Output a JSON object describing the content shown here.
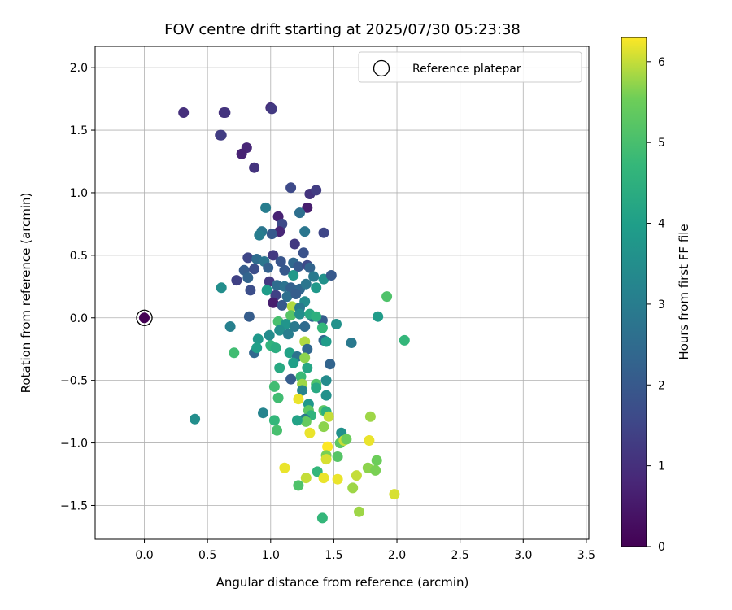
{
  "chart_data": {
    "type": "scatter",
    "title": "FOV centre drift starting at 2025/07/30 05:23:38",
    "xlabel": "Angular distance from reference (arcmin)",
    "ylabel": "Rotation from reference (arcmin)",
    "xlim": [
      -0.39,
      3.52
    ],
    "ylim": [
      -1.77,
      2.17
    ],
    "xticks": [
      "0.0",
      "0.5",
      "1.0",
      "1.5",
      "2.0",
      "2.5",
      "3.0",
      "3.5"
    ],
    "yticks": [
      "−1.5",
      "−1.0",
      "−0.5",
      "0.0",
      "0.5",
      "1.0",
      "1.5",
      "2.0"
    ],
    "grid": true,
    "legend": {
      "placement": "top-right",
      "entries": [
        "Reference platepar"
      ]
    },
    "reference_point": {
      "x": 0.0,
      "y": 0.0
    },
    "colorbar": {
      "label": "Hours from first FF file",
      "range": [
        0,
        6.3
      ],
      "ticks": [
        "0",
        "1",
        "2",
        "3",
        "4",
        "5",
        "6"
      ],
      "colormap": "viridis"
    },
    "points": [
      [
        0.0,
        0.0,
        0.0
      ],
      [
        0.31,
        1.64,
        1.0
      ],
      [
        0.63,
        1.64,
        1.0
      ],
      [
        0.64,
        1.64,
        1.1
      ],
      [
        1.0,
        1.68,
        1.0
      ],
      [
        1.01,
        1.67,
        1.2
      ],
      [
        0.6,
        1.46,
        1.2
      ],
      [
        0.61,
        1.46,
        1.3
      ],
      [
        0.81,
        1.36,
        0.8
      ],
      [
        0.77,
        1.31,
        0.7
      ],
      [
        0.87,
        1.2,
        1.1
      ],
      [
        1.16,
        1.04,
        1.6
      ],
      [
        1.31,
        0.99,
        1.1
      ],
      [
        1.36,
        1.02,
        1.3
      ],
      [
        1.29,
        0.88,
        0.6
      ],
      [
        1.06,
        0.81,
        0.7
      ],
      [
        1.09,
        0.75,
        1.6
      ],
      [
        1.07,
        0.69,
        0.8
      ],
      [
        1.01,
        0.67,
        2.0
      ],
      [
        0.96,
        0.88,
        3.0
      ],
      [
        0.93,
        0.69,
        2.8
      ],
      [
        0.91,
        0.66,
        3.0
      ],
      [
        1.23,
        0.84,
        2.6
      ],
      [
        1.27,
        0.69,
        2.8
      ],
      [
        1.42,
        0.68,
        1.5
      ],
      [
        1.19,
        0.59,
        1.2
      ],
      [
        1.26,
        0.52,
        1.8
      ],
      [
        0.82,
        0.48,
        1.5
      ],
      [
        0.89,
        0.47,
        2.5
      ],
      [
        0.95,
        0.45,
        2.8
      ],
      [
        1.02,
        0.5,
        1.2
      ],
      [
        1.08,
        0.45,
        1.9
      ],
      [
        1.18,
        0.44,
        2.4
      ],
      [
        1.22,
        0.41,
        2.0
      ],
      [
        1.29,
        0.42,
        1.6
      ],
      [
        0.79,
        0.38,
        2.1
      ],
      [
        0.87,
        0.39,
        1.7
      ],
      [
        0.98,
        0.4,
        2.2
      ],
      [
        1.11,
        0.38,
        2.0
      ],
      [
        1.18,
        0.34,
        3.8
      ],
      [
        1.31,
        0.4,
        2.3
      ],
      [
        1.34,
        0.33,
        2.9
      ],
      [
        1.42,
        0.31,
        3.6
      ],
      [
        1.48,
        0.34,
        2.0
      ],
      [
        0.73,
        0.3,
        1.4
      ],
      [
        0.82,
        0.32,
        2.3
      ],
      [
        0.99,
        0.29,
        1.2
      ],
      [
        1.05,
        0.26,
        2.5
      ],
      [
        1.11,
        0.25,
        2.7
      ],
      [
        1.16,
        0.24,
        2.2
      ],
      [
        1.23,
        0.23,
        2.4
      ],
      [
        1.28,
        0.27,
        2.8
      ],
      [
        1.36,
        0.24,
        3.8
      ],
      [
        0.84,
        0.22,
        1.7
      ],
      [
        0.97,
        0.22,
        3.9
      ],
      [
        1.04,
        0.18,
        1.4
      ],
      [
        1.13,
        0.17,
        2.6
      ],
      [
        1.2,
        0.19,
        2.1
      ],
      [
        1.27,
        0.13,
        3.4
      ],
      [
        1.02,
        0.12,
        0.6
      ],
      [
        1.09,
        0.1,
        2.0
      ],
      [
        1.17,
        0.09,
        5.9
      ],
      [
        1.23,
        0.08,
        2.9
      ],
      [
        1.33,
        0.01,
        2.4
      ],
      [
        1.41,
        -0.02,
        2.1
      ],
      [
        1.16,
        0.02,
        5.2
      ],
      [
        1.23,
        0.03,
        3.5
      ],
      [
        1.31,
        0.03,
        4.3
      ],
      [
        1.36,
        0.01,
        4.5
      ],
      [
        0.61,
        0.24,
        3.5
      ],
      [
        0.83,
        0.01,
        2.1
      ],
      [
        1.06,
        -0.03,
        5.0
      ],
      [
        1.12,
        -0.05,
        3.7
      ],
      [
        1.19,
        -0.07,
        2.9
      ],
      [
        1.27,
        -0.07,
        2.5
      ],
      [
        1.41,
        -0.08,
        4.7
      ],
      [
        1.52,
        -0.05,
        3.6
      ],
      [
        1.85,
        0.01,
        3.9
      ],
      [
        1.92,
        0.17,
        5.1
      ],
      [
        0.68,
        -0.07,
        3.1
      ],
      [
        0.9,
        -0.17,
        3.8
      ],
      [
        0.99,
        -0.14,
        3.4
      ],
      [
        1.07,
        -0.1,
        3.5
      ],
      [
        1.14,
        -0.13,
        3.0
      ],
      [
        1.27,
        -0.19,
        5.9
      ],
      [
        1.42,
        -0.18,
        2.4
      ],
      [
        1.44,
        -0.19,
        3.9
      ],
      [
        1.64,
        -0.2,
        2.9
      ],
      [
        2.06,
        -0.18,
        4.7
      ],
      [
        0.87,
        -0.28,
        2.4
      ],
      [
        0.89,
        -0.24,
        4.0
      ],
      [
        0.71,
        -0.28,
        4.9
      ],
      [
        1.0,
        -0.22,
        4.6
      ],
      [
        1.04,
        -0.24,
        4.4
      ],
      [
        1.15,
        -0.28,
        4.1
      ],
      [
        1.21,
        -0.31,
        2.7
      ],
      [
        1.29,
        -0.25,
        2.4
      ],
      [
        1.27,
        -0.32,
        5.7
      ],
      [
        1.18,
        -0.36,
        4.0
      ],
      [
        1.07,
        -0.4,
        4.3
      ],
      [
        1.29,
        -0.4,
        4.2
      ],
      [
        1.47,
        -0.37,
        2.3
      ],
      [
        1.16,
        -0.49,
        2.1
      ],
      [
        1.24,
        -0.47,
        4.8
      ],
      [
        1.25,
        -0.53,
        5.8
      ],
      [
        1.36,
        -0.53,
        5.1
      ],
      [
        1.36,
        -0.56,
        4.3
      ],
      [
        1.44,
        -0.5,
        3.4
      ],
      [
        1.03,
        -0.55,
        4.9
      ],
      [
        1.06,
        -0.64,
        4.9
      ],
      [
        1.25,
        -0.58,
        3.2
      ],
      [
        1.22,
        -0.65,
        6.2
      ],
      [
        1.44,
        -0.62,
        3.6
      ],
      [
        1.3,
        -0.69,
        3.8
      ],
      [
        1.3,
        -0.74,
        5.3
      ],
      [
        1.32,
        -0.78,
        4.6
      ],
      [
        1.27,
        -0.81,
        2.9
      ],
      [
        1.28,
        -0.83,
        5.4
      ],
      [
        1.42,
        -0.74,
        5.3
      ],
      [
        1.44,
        -0.75,
        4.5
      ],
      [
        1.46,
        -0.79,
        6.0
      ],
      [
        1.56,
        -0.92,
        3.6
      ],
      [
        1.79,
        -0.79,
        5.8
      ],
      [
        0.94,
        -0.76,
        3.2
      ],
      [
        1.03,
        -0.82,
        4.7
      ],
      [
        1.05,
        -0.9,
        5.0
      ],
      [
        0.4,
        -0.81,
        3.5
      ],
      [
        1.21,
        -0.82,
        4.1
      ],
      [
        1.31,
        -0.92,
        6.2
      ],
      [
        1.42,
        -0.87,
        5.7
      ],
      [
        1.45,
        -1.03,
        6.3
      ],
      [
        1.55,
        -1.0,
        5.3
      ],
      [
        1.58,
        -0.98,
        6.0
      ],
      [
        1.6,
        -0.97,
        5.5
      ],
      [
        1.78,
        -0.98,
        6.2
      ],
      [
        1.44,
        -1.1,
        5.6
      ],
      [
        1.44,
        -1.13,
        6.1
      ],
      [
        1.53,
        -1.11,
        5.2
      ],
      [
        1.37,
        -1.23,
        4.7
      ],
      [
        1.11,
        -1.2,
        6.2
      ],
      [
        1.28,
        -1.28,
        6.0
      ],
      [
        1.22,
        -1.34,
        5.1
      ],
      [
        1.42,
        -1.28,
        6.2
      ],
      [
        1.53,
        -1.29,
        6.2
      ],
      [
        1.65,
        -1.36,
        5.8
      ],
      [
        1.68,
        -1.26,
        6.0
      ],
      [
        1.77,
        -1.2,
        5.7
      ],
      [
        1.83,
        -1.22,
        5.6
      ],
      [
        1.84,
        -1.14,
        5.5
      ],
      [
        1.98,
        -1.41,
        6.1
      ],
      [
        1.7,
        -1.55,
        5.8
      ],
      [
        1.41,
        -1.6,
        4.7
      ]
    ]
  }
}
